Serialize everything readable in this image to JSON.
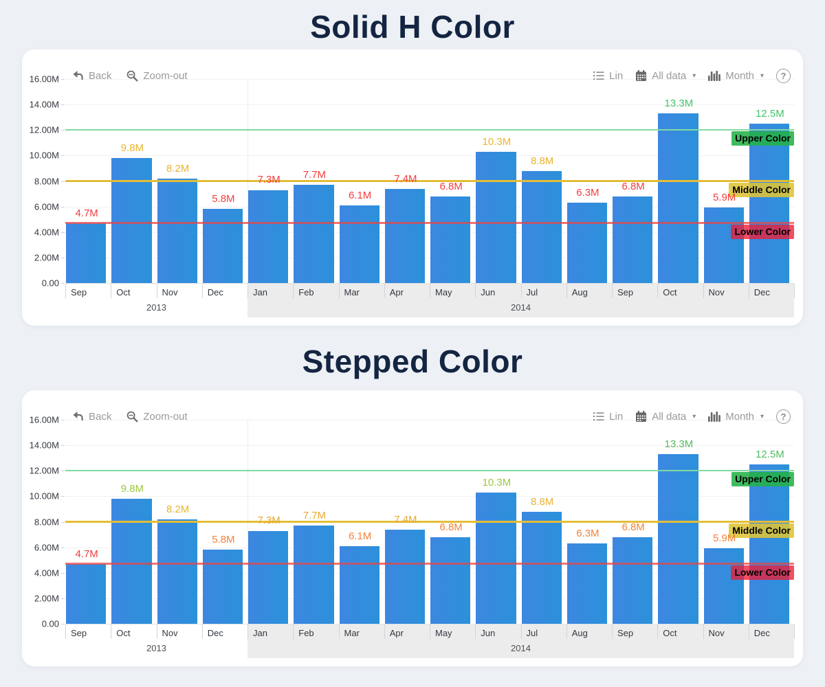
{
  "page": {
    "titles": [
      "Solid H Color",
      "Stepped Color"
    ]
  },
  "toolbar": {
    "back_label": "Back",
    "zoomout_label": "Zoom-out",
    "lin_label": "Lin",
    "all_data_label": "All data",
    "month_label": "Month",
    "caret_glyph": "▾",
    "help_glyph": "?"
  },
  "axis": {
    "y_ticks": [
      "16.00M",
      "14.00M",
      "12.00M",
      "10.00M",
      "8.00M",
      "6.00M",
      "4.00M",
      "2.00M",
      "0.00"
    ]
  },
  "chart_data": [
    {
      "type": "bar",
      "title": "Solid H Color",
      "categories": [
        "Sep",
        "Oct",
        "Nov",
        "Dec",
        "Jan",
        "Feb",
        "Mar",
        "Apr",
        "May",
        "Jun",
        "Jul",
        "Aug",
        "Sep",
        "Oct",
        "Nov",
        "Dec"
      ],
      "values": [
        4.7,
        9.8,
        8.2,
        5.8,
        7.3,
        7.7,
        6.1,
        7.4,
        6.8,
        10.3,
        8.8,
        6.3,
        6.8,
        13.3,
        5.9,
        12.5
      ],
      "labels": [
        "4.7M",
        "9.8M",
        "8.2M",
        "5.8M",
        "7.3M",
        "7.7M",
        "6.1M",
        "7.4M",
        "6.8M",
        "10.3M",
        "8.8M",
        "6.3M",
        "6.8M",
        "13.3M",
        "5.9M",
        "12.5M"
      ],
      "label_colors": [
        "#f23d3d",
        "#e9b42e",
        "#e9b42e",
        "#f23d3d",
        "#f23d3d",
        "#f23d3d",
        "#f23d3d",
        "#f23d3d",
        "#f23d3d",
        "#e9b42e",
        "#e9b42e",
        "#f23d3d",
        "#f23d3d",
        "#3fc468",
        "#f23d3d",
        "#3fc468"
      ],
      "bar_color": "#2e86dd",
      "ylim": [
        0,
        16
      ],
      "ylabel": "",
      "xlabel": "",
      "hlines": [
        {
          "label": "Upper Color",
          "value": 12,
          "line_color": "#83d9a1",
          "line_width": 2,
          "badge_bg": "rgba(36,178,72,0.88)"
        },
        {
          "label": "Middle Color",
          "value": 8,
          "line_color": "#e4bd37",
          "line_width": 3,
          "badge_bg": "rgba(222,196,55,0.88)"
        },
        {
          "label": "Lower Color",
          "value": 4.7,
          "line_color": "rgba(232,70,70,0.75)",
          "line_width": 3,
          "badge_bg": "rgba(237,30,55,0.78)"
        }
      ],
      "year_groups": [
        {
          "label": "2013",
          "start": 0,
          "span": 4,
          "shaded": false
        },
        {
          "label": "2014",
          "start": 4,
          "span": 12,
          "shaded": true
        }
      ]
    },
    {
      "type": "bar",
      "title": "Stepped Color",
      "categories": [
        "Sep",
        "Oct",
        "Nov",
        "Dec",
        "Jan",
        "Feb",
        "Mar",
        "Apr",
        "May",
        "Jun",
        "Jul",
        "Aug",
        "Sep",
        "Oct",
        "Nov",
        "Dec"
      ],
      "values": [
        4.7,
        9.8,
        8.2,
        5.8,
        7.3,
        7.7,
        6.1,
        7.4,
        6.8,
        10.3,
        8.8,
        6.3,
        6.8,
        13.3,
        5.9,
        12.5
      ],
      "labels": [
        "4.7M",
        "9.8M",
        "8.2M",
        "5.8M",
        "7.3M",
        "7.7M",
        "6.1M",
        "7.4M",
        "6.8M",
        "10.3M",
        "8.8M",
        "6.3M",
        "6.8M",
        "13.3M",
        "5.9M",
        "12.5M"
      ],
      "label_colors": [
        "#f23d3d",
        "#9bc83e",
        "#e7b52f",
        "#f2823a",
        "#eaa930",
        "#eaa930",
        "#f2823a",
        "#eaa930",
        "#f2823a",
        "#9bc83e",
        "#e9b236",
        "#f2823a",
        "#f2823a",
        "#54ba61",
        "#f2823a",
        "#54ba61"
      ],
      "bar_color": "#2e86dd",
      "ylim": [
        0,
        16
      ],
      "ylabel": "",
      "xlabel": "",
      "hlines": [
        {
          "label": "Upper Color",
          "value": 12,
          "line_color": "#83d9a1",
          "line_width": 2,
          "badge_bg": "rgba(36,178,72,0.88)"
        },
        {
          "label": "Middle Color",
          "value": 8,
          "line_color": "#e4bd37",
          "line_width": 3,
          "badge_bg": "rgba(222,196,55,0.88)"
        },
        {
          "label": "Lower Color",
          "value": 4.7,
          "line_color": "rgba(232,70,70,0.75)",
          "line_width": 3,
          "badge_bg": "rgba(237,30,55,0.78)"
        }
      ],
      "year_groups": [
        {
          "label": "2013",
          "start": 0,
          "span": 4,
          "shaded": false
        },
        {
          "label": "2014",
          "start": 4,
          "span": 12,
          "shaded": true
        }
      ]
    }
  ]
}
